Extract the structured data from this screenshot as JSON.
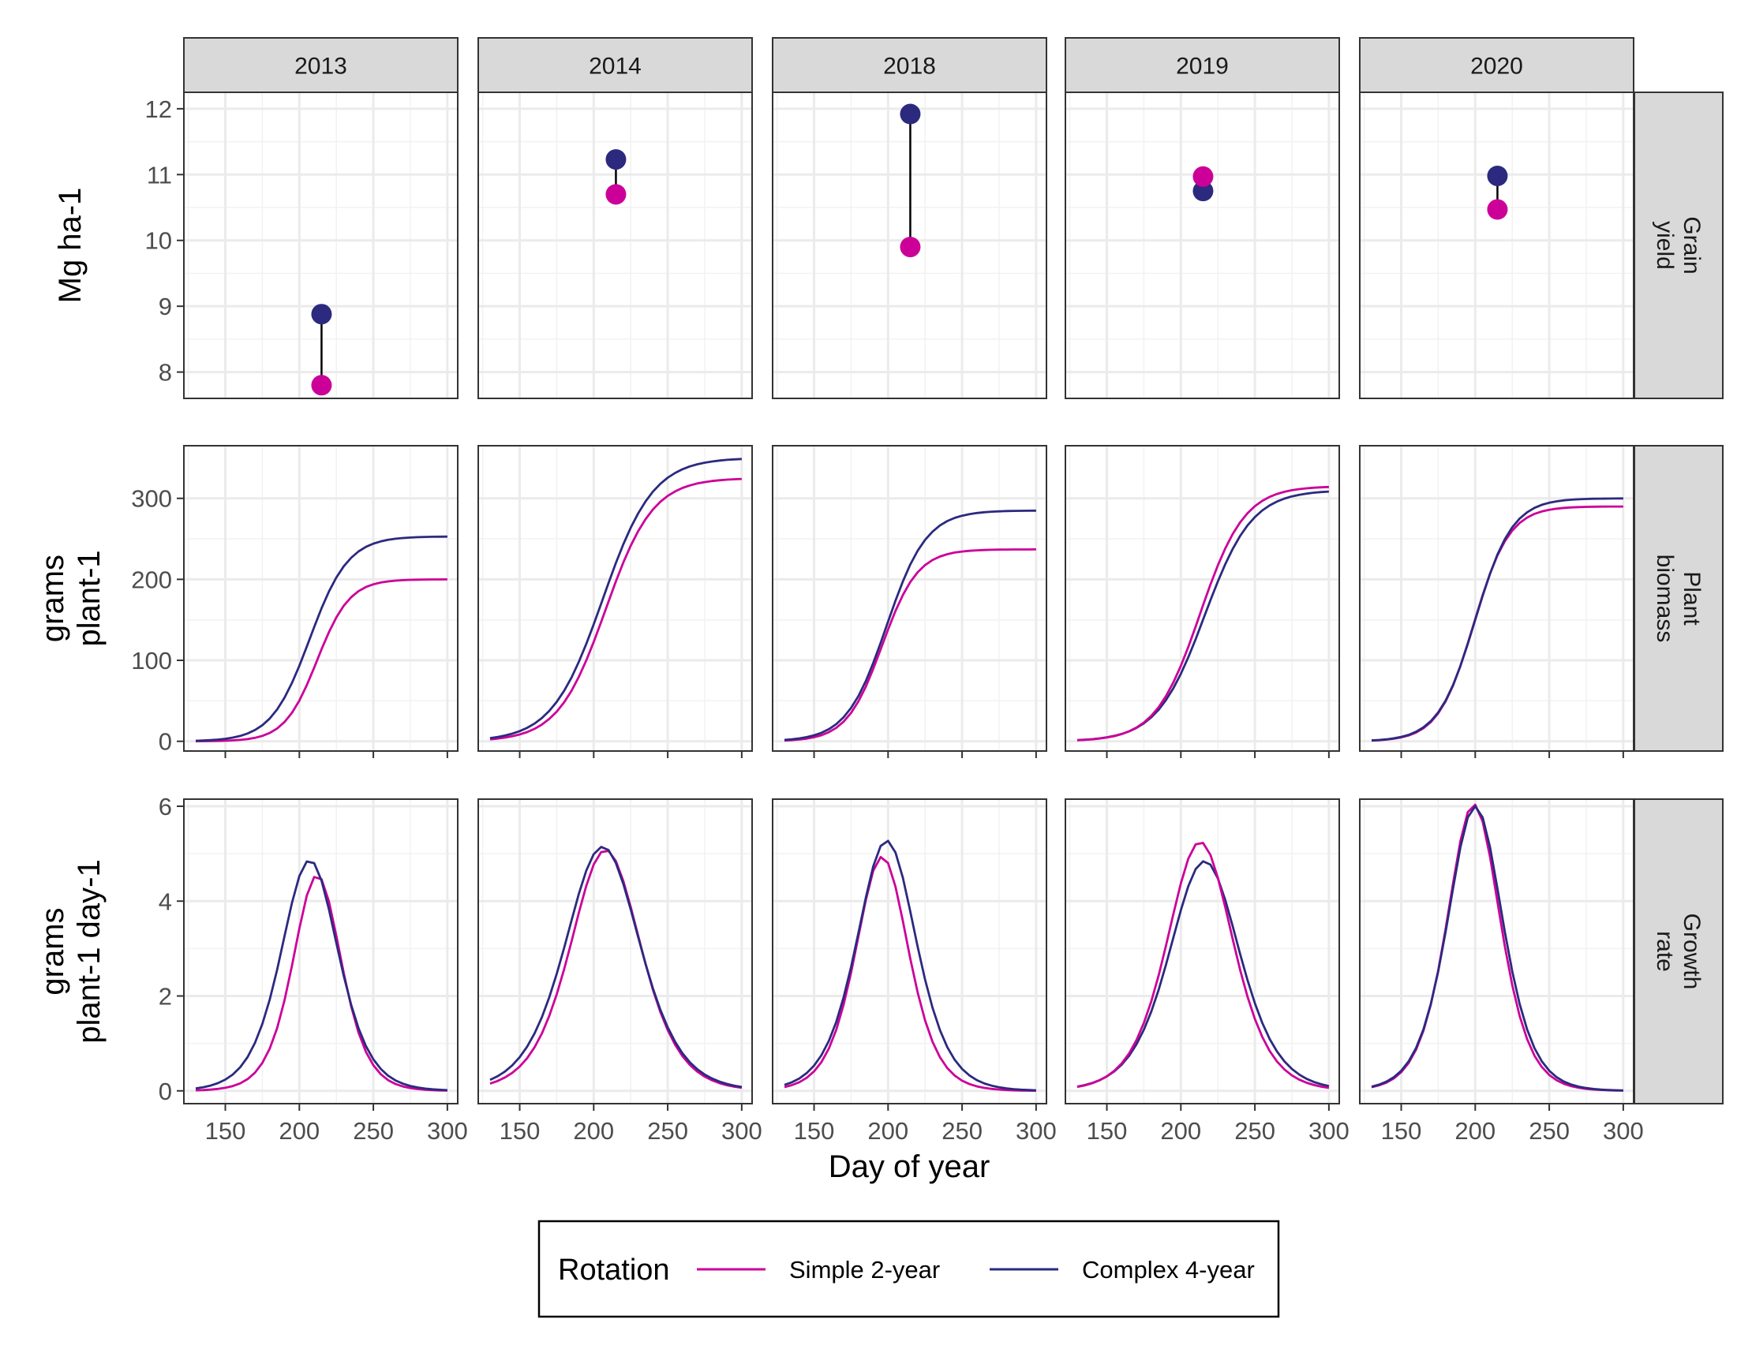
{
  "chart_data": {
    "type": "line",
    "facet_columns": [
      "2013",
      "2014",
      "2018",
      "2019",
      "2020"
    ],
    "facet_rows": [
      {
        "key": "grain",
        "strip": "Grain\nyield",
        "ylabel": "Mg ha-1",
        "ylim": [
          7.6,
          12.25
        ],
        "yticks": [
          "8",
          "9",
          "10",
          "11",
          "12"
        ],
        "type": "dumbbell"
      },
      {
        "key": "biomass",
        "strip": "Plant\nbiomass",
        "ylabel": "grams\nplant-1",
        "ylim": [
          -12,
          365
        ],
        "yticks": [
          "0",
          "100",
          "200",
          "300"
        ],
        "type": "line"
      },
      {
        "key": "rate",
        "strip": "Growth\nrate",
        "ylabel": "grams\nplant-1 day-1",
        "ylim": [
          -0.27,
          6.15
        ],
        "yticks": [
          "0",
          "2",
          "4",
          "6"
        ],
        "type": "line"
      }
    ],
    "xlabel": "Day of year",
    "xlim": [
      122,
      307
    ],
    "xticks": [
      "150",
      "200",
      "250",
      "300"
    ],
    "grid": true,
    "legend": {
      "title": "Rotation",
      "position": "bottom",
      "entries": [
        {
          "name": "Simple 2-year",
          "color": "#cc0099"
        },
        {
          "name": "Complex 4-year",
          "color": "#2b2a7f"
        }
      ]
    },
    "grain_yield": {
      "day": 215,
      "series": [
        {
          "name": "Simple 2-year",
          "values": [
            7.8,
            10.7,
            9.9,
            10.97,
            10.47
          ]
        },
        {
          "name": "Complex 4-year",
          "values": [
            8.88,
            11.23,
            11.92,
            10.75,
            10.98
          ]
        }
      ]
    },
    "curve_params": {
      "x_start": 130,
      "x_end": 300,
      "x_step": 5,
      "biomass_note": "logistic fit per panel: max, midpoint day, scale (days)",
      "biomass": {
        "Simple 2-year": [
          [
            200,
            212,
            11
          ],
          [
            325,
            208,
            16
          ],
          [
            237,
            196,
            12
          ],
          [
            315,
            213,
            15
          ],
          [
            290,
            199,
            12
          ]
        ],
        "Complex 4-year": [
          [
            253,
            207,
            13
          ],
          [
            350,
            206,
            17
          ],
          [
            285,
            199,
            13.5
          ],
          [
            310,
            216,
            16
          ],
          [
            300,
            200,
            12.5
          ]
        ]
      }
    },
    "series": [
      {
        "name": "Simple 2-year"
      },
      {
        "name": "Complex 4-year"
      }
    ]
  }
}
